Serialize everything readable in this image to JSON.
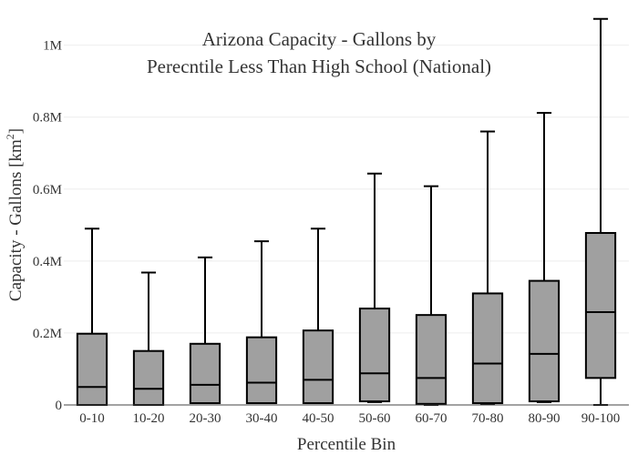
{
  "chart_data": {
    "type": "box",
    "title_lines": [
      "Arizona Capacity - Gallons by",
      "Perecntile Less Than High School (National)"
    ],
    "xlabel": "Percentile Bin",
    "ylabel": "Capacity - Gallons",
    "ylabel_unit_base": "km",
    "ylabel_unit_exp": "2",
    "ylim": [
      0,
      1080000
    ],
    "yticks": [
      {
        "value": 0,
        "label": "0"
      },
      {
        "value": 200000,
        "label": "0.2M"
      },
      {
        "value": 400000,
        "label": "0.4M"
      },
      {
        "value": 600000,
        "label": "0.6M"
      },
      {
        "value": 800000,
        "label": "0.8M"
      },
      {
        "value": 1000000,
        "label": "1M"
      }
    ],
    "grid": true,
    "box_color": "#a0a0a0",
    "categories": [
      "0-10",
      "10-20",
      "20-30",
      "30-40",
      "40-50",
      "50-60",
      "60-70",
      "70-80",
      "80-90",
      "90-100"
    ],
    "boxes": [
      {
        "min": 0,
        "q1": 0,
        "median": 50000,
        "q3": 198000,
        "max": 490000
      },
      {
        "min": 0,
        "q1": 0,
        "median": 45000,
        "q3": 150000,
        "max": 368000
      },
      {
        "min": 5000,
        "q1": 5000,
        "median": 56000,
        "q3": 170000,
        "max": 410000
      },
      {
        "min": 5000,
        "q1": 5000,
        "median": 62000,
        "q3": 188000,
        "max": 455000
      },
      {
        "min": 5000,
        "q1": 5000,
        "median": 70000,
        "q3": 207000,
        "max": 490000
      },
      {
        "min": 8000,
        "q1": 10000,
        "median": 88000,
        "q3": 268000,
        "max": 643000
      },
      {
        "min": 0,
        "q1": 3000,
        "median": 75000,
        "q3": 250000,
        "max": 608000
      },
      {
        "min": 3000,
        "q1": 5000,
        "median": 115000,
        "q3": 310000,
        "max": 760000
      },
      {
        "min": 8000,
        "q1": 10000,
        "median": 142000,
        "q3": 345000,
        "max": 812000
      },
      {
        "min": 0,
        "q1": 75000,
        "median": 258000,
        "q3": 478000,
        "max": 1073000
      }
    ]
  }
}
